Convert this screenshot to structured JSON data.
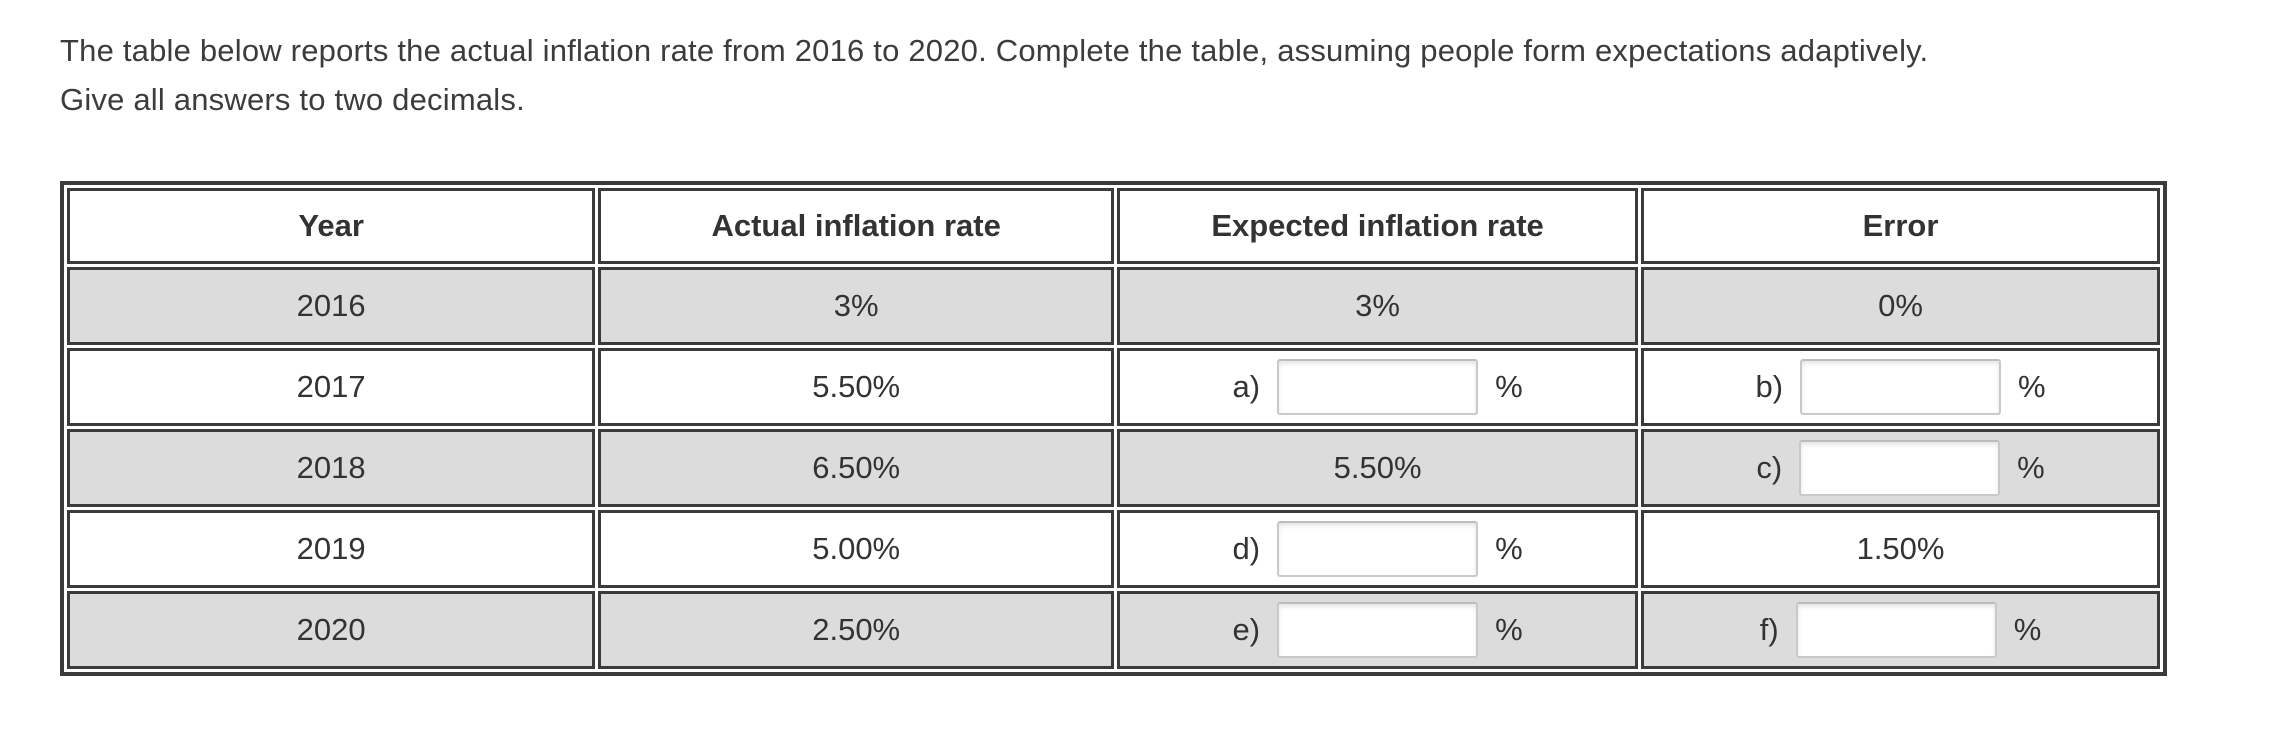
{
  "instructions": {
    "line1": "The table below reports the actual inflation rate from 2016 to 2020. Complete the table, assuming people form expectations adaptively.",
    "line2": "Give all answers to two decimals."
  },
  "table": {
    "headers": [
      "Year",
      "Actual inflation rate",
      "Expected inflation rate",
      "Error"
    ],
    "rows": [
      {
        "year": "2016",
        "actual": "3%",
        "expected": {
          "type": "text",
          "value": "3%"
        },
        "error": {
          "type": "text",
          "value": "0%"
        }
      },
      {
        "year": "2017",
        "actual": "5.50%",
        "expected": {
          "type": "input",
          "label": "a)",
          "value": "",
          "suffix": "%"
        },
        "error": {
          "type": "input",
          "label": "b)",
          "value": "",
          "suffix": "%"
        }
      },
      {
        "year": "2018",
        "actual": "6.50%",
        "expected": {
          "type": "text",
          "value": "5.50%"
        },
        "error": {
          "type": "input",
          "label": "c)",
          "value": "",
          "suffix": "%"
        }
      },
      {
        "year": "2019",
        "actual": "5.00%",
        "expected": {
          "type": "input",
          "label": "d)",
          "value": "",
          "suffix": "%"
        },
        "error": {
          "type": "text",
          "value": "1.50%"
        }
      },
      {
        "year": "2020",
        "actual": "2.50%",
        "expected": {
          "type": "input",
          "label": "e)",
          "value": "",
          "suffix": "%"
        },
        "error": {
          "type": "input",
          "label": "f)",
          "value": "",
          "suffix": "%"
        }
      }
    ],
    "colors": {
      "border": "#3b3b3b",
      "row_alt_bg": "#dcdcdc",
      "text": "#333333",
      "input_border": "#c9c9c9"
    }
  }
}
